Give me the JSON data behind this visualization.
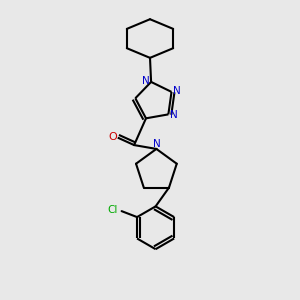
{
  "background_color": "#e8e8e8",
  "bond_color": "#000000",
  "n_color": "#0000cc",
  "o_color": "#cc0000",
  "cl_color": "#00aa00",
  "line_width": 1.5,
  "figsize": [
    3.0,
    3.0
  ],
  "dpi": 100,
  "xlim": [
    0.2,
    0.8
  ],
  "ylim": [
    0.0,
    1.0
  ]
}
